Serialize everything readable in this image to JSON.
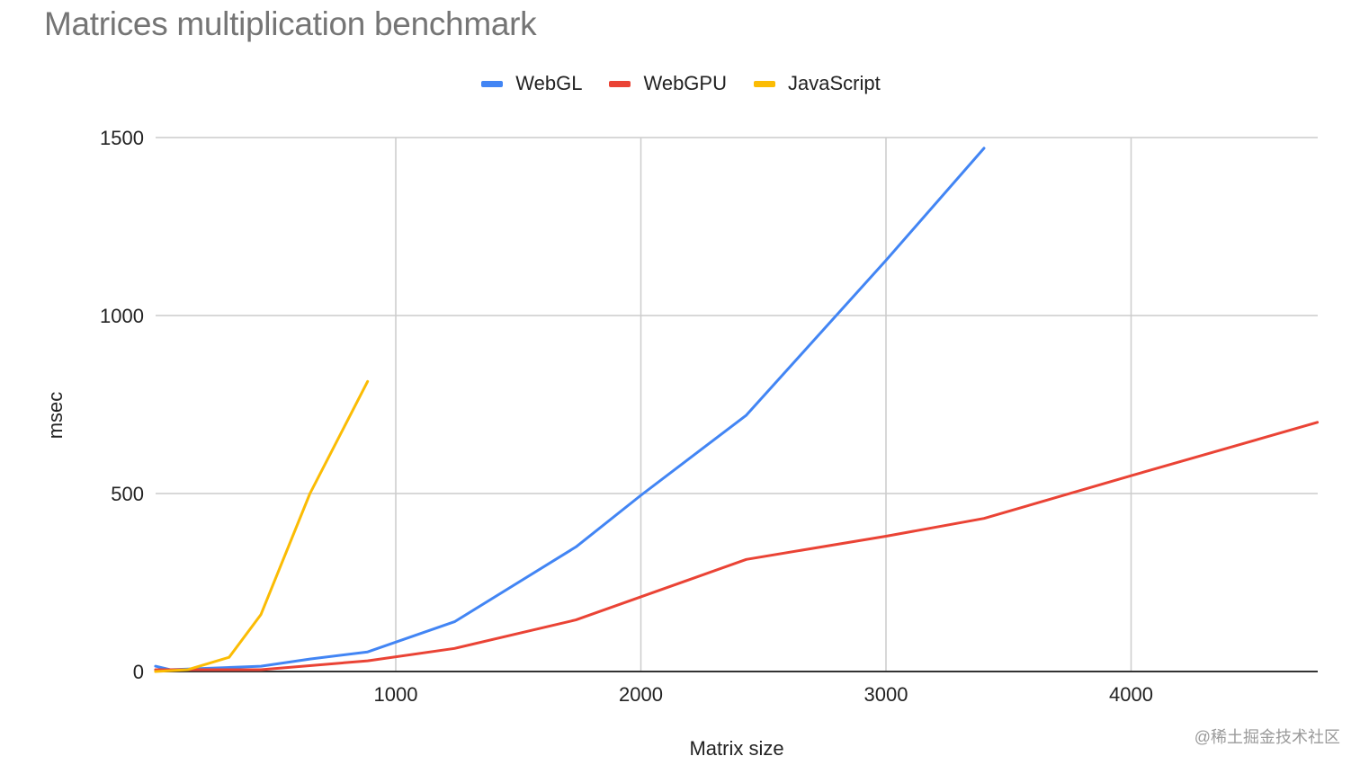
{
  "chart_data": {
    "type": "line",
    "title": "Matrices multiplication benchmark",
    "xlabel": "Matrix size",
    "ylabel": "msec",
    "xlim": [
      20,
      4760
    ],
    "ylim": [
      0,
      1500
    ],
    "x_ticks": [
      1000,
      2000,
      3000,
      4000
    ],
    "y_ticks": [
      0,
      500,
      1000,
      1500
    ],
    "grid": true,
    "legend_position": "top",
    "series": [
      {
        "name": "WebGL",
        "color": "#4285f4",
        "points": [
          [
            20,
            15
          ],
          [
            80,
            5
          ],
          [
            450,
            15
          ],
          [
            650,
            35
          ],
          [
            885,
            55
          ],
          [
            1240,
            140
          ],
          [
            1735,
            350
          ],
          [
            2000,
            495
          ],
          [
            2430,
            720
          ],
          [
            3000,
            1155
          ],
          [
            3400,
            1470
          ]
        ]
      },
      {
        "name": "WebGPU",
        "color": "#ea4335",
        "points": [
          [
            20,
            5
          ],
          [
            450,
            5
          ],
          [
            885,
            30
          ],
          [
            1240,
            65
          ],
          [
            1735,
            145
          ],
          [
            2430,
            315
          ],
          [
            3000,
            380
          ],
          [
            3400,
            430
          ],
          [
            4000,
            550
          ],
          [
            4760,
            700
          ]
        ]
      },
      {
        "name": "JavaScript",
        "color": "#fbbc04",
        "points": [
          [
            20,
            0
          ],
          [
            150,
            5
          ],
          [
            320,
            40
          ],
          [
            450,
            160
          ],
          [
            650,
            500
          ],
          [
            885,
            815
          ]
        ]
      }
    ]
  },
  "legend": {
    "items": [
      {
        "label": "WebGL",
        "color": "#4285f4"
      },
      {
        "label": "WebGPU",
        "color": "#ea4335"
      },
      {
        "label": "JavaScript",
        "color": "#fbbc04"
      }
    ]
  },
  "watermark": "@稀土掘金技术社区"
}
